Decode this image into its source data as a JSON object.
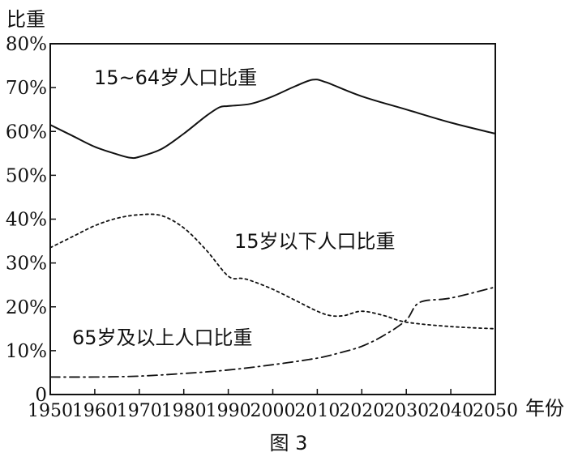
{
  "chart_data": {
    "type": "line",
    "ylabel": "比重",
    "xlabel": "年份",
    "caption": "图 3",
    "x": [
      1950,
      1960,
      1970,
      1980,
      1990,
      2000,
      2010,
      2020,
      2030,
      2040,
      2050
    ],
    "xlim": [
      1950,
      2050
    ],
    "ylim": [
      0,
      80
    ],
    "x_ticks": [
      "1950",
      "1960",
      "1970",
      "1980",
      "1990",
      "2000",
      "2010",
      "2020",
      "2030",
      "2040",
      "2050"
    ],
    "y_ticks": [
      "0",
      "10%",
      "20%",
      "30%",
      "40%",
      "50%",
      "60%",
      "70%",
      "80%"
    ],
    "grid": false,
    "series": [
      {
        "name": "15~64岁人口比重",
        "style": "solid",
        "x": [
          1950,
          1955,
          1960,
          1965,
          1968,
          1970,
          1975,
          1980,
          1985,
          1988,
          1990,
          1995,
          2000,
          2005,
          2009,
          2012,
          2020,
          2030,
          2040,
          2050
        ],
        "values": [
          61.5,
          59,
          56.5,
          54.8,
          54,
          54.2,
          56,
          59.5,
          63.5,
          65.5,
          65.8,
          66.3,
          68,
          70.3,
          71.8,
          71.2,
          68,
          65,
          62,
          59.5
        ]
      },
      {
        "name": "15岁以下人口比重",
        "style": "dotted",
        "x": [
          1950,
          1955,
          1960,
          1965,
          1970,
          1975,
          1980,
          1985,
          1990,
          1993,
          1995,
          2000,
          2005,
          2010,
          2013,
          2016,
          2020,
          2025,
          2030,
          2040,
          2050
        ],
        "values": [
          33.5,
          36,
          38.5,
          40.2,
          41,
          40.8,
          38,
          33,
          27,
          26.5,
          26,
          24,
          21.5,
          19,
          18,
          18,
          19,
          18,
          16.5,
          15.5,
          15
        ]
      },
      {
        "name": "65岁及以上人口比重",
        "style": "dashdot",
        "x": [
          1950,
          1960,
          1970,
          1980,
          1990,
          2000,
          2010,
          2015,
          2020,
          2025,
          2030,
          2033,
          2040,
          2050
        ],
        "values": [
          4,
          4,
          4.2,
          4.8,
          5.6,
          6.8,
          8.3,
          9.5,
          11,
          13.5,
          17,
          21,
          22,
          24.5
        ]
      }
    ]
  }
}
